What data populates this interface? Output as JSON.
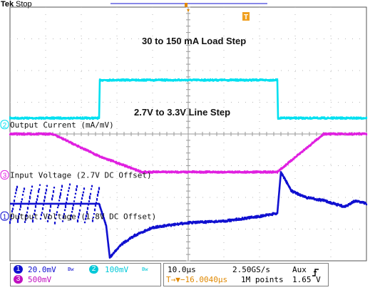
{
  "header": {
    "brand": "Tek",
    "status": "Stop"
  },
  "chart_data": {
    "type": "line",
    "title": "",
    "xlabel": "",
    "ylabel": "",
    "grid": true,
    "grid_divisions": {
      "x": 10,
      "y": 8
    },
    "x_unit": "µs",
    "xlim": [
      -50,
      50
    ],
    "annotations": [
      {
        "text": "30 to 150 mA Load Step"
      },
      {
        "text": "2.7V to 3.3V Line Step"
      }
    ],
    "series": [
      {
        "id": "ch2",
        "badge": "2",
        "name": "Output Current (mA/mV)",
        "color": "#00e0f0",
        "scale_label": "100mV",
        "unit": "mA",
        "level_div": 0.5,
        "x": [
          -50,
          -25.0,
          -24.8,
          25.0,
          25.2,
          50
        ],
        "y": [
          30,
          30,
          150,
          150,
          30,
          30
        ]
      },
      {
        "id": "ch3",
        "badge": "3",
        "name": "Input Voltage (2.7V DC Offset)",
        "color": "#e020e0",
        "scale_label": "500mV",
        "unit": "V",
        "level_div": -1.2,
        "x": [
          -50,
          -38,
          -25,
          -13,
          0,
          14,
          25,
          38,
          50
        ],
        "y": [
          3.3,
          3.3,
          2.95,
          2.7,
          2.7,
          2.7,
          2.7,
          3.3,
          3.3
        ]
      },
      {
        "id": "ch1",
        "badge": "1",
        "name": "Output Voltage (1.8V DC Offset)",
        "color": "#1010d0",
        "scale_label": "20.0mV",
        "unit": "mV",
        "level_div": -2.5,
        "x": [
          -50,
          -25,
          -23,
          -22,
          -19,
          -15,
          -10,
          0,
          10,
          20,
          25,
          26,
          29,
          33,
          38,
          44,
          47,
          50
        ],
        "y": [
          6,
          6,
          -8,
          -28,
          -20,
          -14,
          -9,
          -6,
          -5,
          -2,
          0,
          26,
          14,
          10,
          8,
          4,
          8,
          6
        ]
      }
    ],
    "ripple": {
      "series": "ch1",
      "x_range": [
        -50,
        -25
      ],
      "period_us": 2.1,
      "amplitude_mV": 24
    }
  },
  "footer": {
    "ch1": {
      "badge": "1",
      "scale": "20.0mV",
      "suffix": "Bw"
    },
    "ch2": {
      "badge": "2",
      "scale": "100mV",
      "suffix": "Bw"
    },
    "ch3": {
      "badge": "3",
      "scale": "500mV"
    },
    "timebase": "10.0µs",
    "sample_rate": "2.50GS/s",
    "trigger_source": "Aux",
    "trigger_slope": "rising-edge-icon",
    "trigger_position": "T→▼−16.0040µs",
    "record_length": "1M points",
    "trigger_level": "1.65 V"
  }
}
